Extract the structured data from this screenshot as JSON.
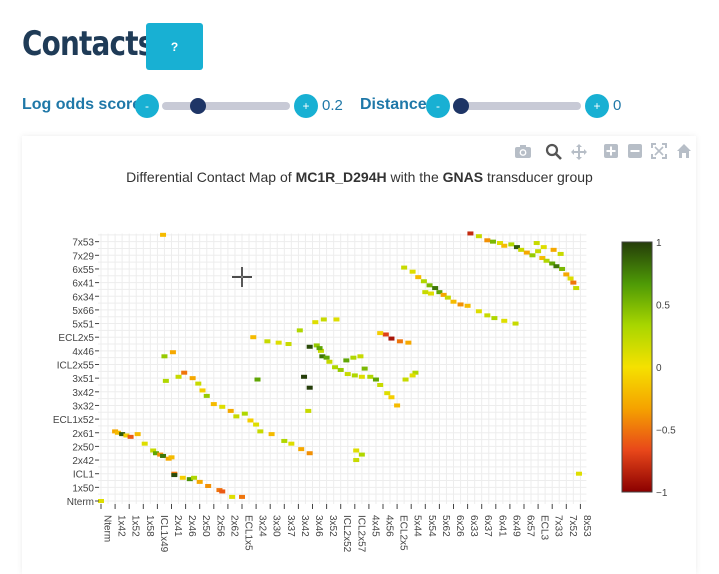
{
  "page": {
    "title": "Contacts",
    "help_label": "?"
  },
  "controls": {
    "log_odds": {
      "label": "Log odds score",
      "minus": "-",
      "plus": "+",
      "value": "0.2",
      "fraction": 0.25
    },
    "distance": {
      "label": "Distance",
      "minus": "-",
      "plus": "+",
      "value": "0",
      "fraction": 0.0
    }
  },
  "modebar": {
    "icons": [
      "camera-icon",
      "zoom-icon",
      "pan-icon",
      "zoom-in-icon",
      "zoom-out-icon",
      "autoscale-icon",
      "home-icon"
    ]
  },
  "chart_data": {
    "type": "heatmap",
    "title_parts": [
      "Differential Contact Map of ",
      "MC1R_D294H",
      " with the ",
      "GNAS",
      " transducer group"
    ],
    "x_categories": [
      "Nterm",
      "1x42",
      "1x52",
      "1x58",
      "ICL1x49",
      "2x41",
      "2x46",
      "2x50",
      "2x56",
      "2x62",
      "ECL1x5",
      "3x24",
      "3x30",
      "3x37",
      "3x42",
      "3x46",
      "3x52",
      "ICL2x52",
      "ICL2x57",
      "4x45",
      "4x56",
      "ECL2x5",
      "5x44",
      "5x54",
      "5x62",
      "6x26",
      "6x33",
      "6x37",
      "6x41",
      "6x49",
      "6x57",
      "ECL3",
      "7x33",
      "7x52",
      "8x53"
    ],
    "y_categories": [
      "Nterm",
      "1x50",
      "ICL1",
      "2x42",
      "2x50",
      "2x61",
      "ECL1x52",
      "3x32",
      "3x42",
      "3x51",
      "ICL2x55",
      "4x46",
      "ECL2x5",
      "5x51",
      "5x66",
      "6x34",
      "6x41",
      "6x55",
      "7x29",
      "7x53"
    ],
    "colorbar": {
      "min": -1,
      "max": 1,
      "ticks": [
        1,
        0.5,
        0,
        -0.5,
        -1
      ],
      "tick_labels": [
        "1",
        "0.5",
        "0",
        "−0.5",
        "−1"
      ]
    },
    "colorscale": [
      "#8b0000",
      "#e8471a",
      "#f5a200",
      "#f5e100",
      "#a8d600",
      "#4e9a06",
      "#253d0a"
    ],
    "grid": true,
    "cells": [
      {
        "x": 0,
        "y": 0,
        "v": 0.1
      },
      {
        "x": 4.4,
        "y": 19.5,
        "v": -0.2
      },
      {
        "x": 1,
        "y": 5.1,
        "v": -0.3
      },
      {
        "x": 1.2,
        "y": 5,
        "v": -0.2
      },
      {
        "x": 1.5,
        "y": 4.9,
        "v": 0.9
      },
      {
        "x": 1.8,
        "y": 4.8,
        "v": -0.1
      },
      {
        "x": 2.1,
        "y": 4.7,
        "v": -0.6
      },
      {
        "x": 2.6,
        "y": 4.9,
        "v": -0.2
      },
      {
        "x": 3.1,
        "y": 4.2,
        "v": 0.1
      },
      {
        "x": 3.7,
        "y": 3.7,
        "v": 0.2
      },
      {
        "x": 3.9,
        "y": 3.5,
        "v": 0.6
      },
      {
        "x": 4.2,
        "y": 3.4,
        "v": -0.4
      },
      {
        "x": 4.4,
        "y": 3.3,
        "v": 0.8
      },
      {
        "x": 4.8,
        "y": 3.1,
        "v": -0.3
      },
      {
        "x": 5,
        "y": 3.2,
        "v": -0.2
      },
      {
        "x": 5.2,
        "y": 2,
        "v": -0.5
      },
      {
        "x": 5.2,
        "y": 1.9,
        "v": 0.95
      },
      {
        "x": 5.8,
        "y": 1.7,
        "v": -0.1
      },
      {
        "x": 6.3,
        "y": 1.6,
        "v": 0.7
      },
      {
        "x": 6.6,
        "y": 1.7,
        "v": 0.3
      },
      {
        "x": 7,
        "y": 1.4,
        "v": -0.3
      },
      {
        "x": 7.6,
        "y": 1.1,
        "v": -0.4
      },
      {
        "x": 8.4,
        "y": 0.8,
        "v": -0.5
      },
      {
        "x": 8.6,
        "y": 0.7,
        "v": -0.6
      },
      {
        "x": 9.3,
        "y": 0.3,
        "v": 0.1
      },
      {
        "x": 10,
        "y": 0.3,
        "v": -0.5
      },
      {
        "x": 5.5,
        "y": 9.1,
        "v": 0.2
      },
      {
        "x": 5.9,
        "y": 9.4,
        "v": -0.5
      },
      {
        "x": 6.5,
        "y": 9.0,
        "v": -0.3
      },
      {
        "x": 6.9,
        "y": 8.6,
        "v": 0.2
      },
      {
        "x": 7.2,
        "y": 8.1,
        "v": -0.1
      },
      {
        "x": 7.5,
        "y": 7.7,
        "v": 0.4
      },
      {
        "x": 8,
        "y": 7.1,
        "v": -0.2
      },
      {
        "x": 8.6,
        "y": 6.9,
        "v": 0.1
      },
      {
        "x": 9.2,
        "y": 6.6,
        "v": -0.3
      },
      {
        "x": 9.6,
        "y": 6.2,
        "v": 0.2
      },
      {
        "x": 10.2,
        "y": 6.4,
        "v": 0.3
      },
      {
        "x": 10.6,
        "y": 5.9,
        "v": -0.1
      },
      {
        "x": 11,
        "y": 5.6,
        "v": 0.1
      },
      {
        "x": 11.3,
        "y": 5.1,
        "v": 0.2
      },
      {
        "x": 12.1,
        "y": 4.9,
        "v": -0.2
      },
      {
        "x": 13,
        "y": 4.4,
        "v": 0.3
      },
      {
        "x": 13.5,
        "y": 4.2,
        "v": 0.1
      },
      {
        "x": 14.2,
        "y": 3.8,
        "v": -0.3
      },
      {
        "x": 14.8,
        "y": 3.5,
        "v": -0.4
      },
      {
        "x": 4.5,
        "y": 10.6,
        "v": 0.4
      },
      {
        "x": 5.1,
        "y": 10.9,
        "v": -0.3
      },
      {
        "x": 4.6,
        "y": 8.8,
        "v": 0.3
      },
      {
        "x": 10.8,
        "y": 12,
        "v": -0.2
      },
      {
        "x": 11.8,
        "y": 11.7,
        "v": 0.2
      },
      {
        "x": 12.6,
        "y": 11.6,
        "v": 0.1
      },
      {
        "x": 13.3,
        "y": 11.5,
        "v": 0.2
      },
      {
        "x": 14.1,
        "y": 12.5,
        "v": 0.3
      },
      {
        "x": 14.8,
        "y": 11.3,
        "v": 0.95
      },
      {
        "x": 15.3,
        "y": 11.4,
        "v": 0.4
      },
      {
        "x": 15.6,
        "y": 11.0,
        "v": 0.2
      },
      {
        "x": 15.5,
        "y": 11.2,
        "v": 0.6
      },
      {
        "x": 15.7,
        "y": 10.6,
        "v": 0.8
      },
      {
        "x": 16,
        "y": 10.5,
        "v": 0.6
      },
      {
        "x": 16.2,
        "y": 10.2,
        "v": 0.2
      },
      {
        "x": 16.6,
        "y": 9.8,
        "v": 0.3
      },
      {
        "x": 17,
        "y": 9.6,
        "v": 0.4
      },
      {
        "x": 17.5,
        "y": 9.3,
        "v": 0.2
      },
      {
        "x": 18,
        "y": 9.2,
        "v": 0.3
      },
      {
        "x": 18.5,
        "y": 9.1,
        "v": 0.1
      },
      {
        "x": 15.2,
        "y": 13.1,
        "v": 0.1
      },
      {
        "x": 15.8,
        "y": 13.3,
        "v": 0.2
      },
      {
        "x": 16.7,
        "y": 13.3,
        "v": 0.1
      },
      {
        "x": 17.4,
        "y": 10.3,
        "v": 0.6
      },
      {
        "x": 17.9,
        "y": 10.5,
        "v": 0.3
      },
      {
        "x": 18.4,
        "y": 10.6,
        "v": 0.2
      },
      {
        "x": 18.7,
        "y": 9.7,
        "v": 0.5
      },
      {
        "x": 19.1,
        "y": 9.1,
        "v": 0.3
      },
      {
        "x": 19.5,
        "y": 8.9,
        "v": 0.6
      },
      {
        "x": 19.8,
        "y": 8.5,
        "v": 0.2
      },
      {
        "x": 20.3,
        "y": 7.9,
        "v": 0.1
      },
      {
        "x": 20.6,
        "y": 7.6,
        "v": -0.1
      },
      {
        "x": 21.0,
        "y": 7.0,
        "v": -0.2
      },
      {
        "x": 14.4,
        "y": 9.1,
        "v": 1.0
      },
      {
        "x": 14.8,
        "y": 8.3,
        "v": 1.0
      },
      {
        "x": 11.1,
        "y": 8.9,
        "v": 0.6
      },
      {
        "x": 14.7,
        "y": 6.6,
        "v": 0.2
      },
      {
        "x": 18.1,
        "y": 3.0,
        "v": 0.2
      },
      {
        "x": 18.5,
        "y": 3.4,
        "v": 0.3
      },
      {
        "x": 18.1,
        "y": 3.7,
        "v": 0.1
      },
      {
        "x": 20.2,
        "y": 12.2,
        "v": -0.7
      },
      {
        "x": 20.6,
        "y": 11.9,
        "v": -0.9
      },
      {
        "x": 21.2,
        "y": 11.7,
        "v": -0.5
      },
      {
        "x": 21.8,
        "y": 11.6,
        "v": -0.3
      },
      {
        "x": 19.8,
        "y": 12.3,
        "v": -0.1
      },
      {
        "x": 21.6,
        "y": 8.9,
        "v": 0.2
      },
      {
        "x": 22.3,
        "y": 9.4,
        "v": 0.3
      },
      {
        "x": 22.1,
        "y": 9.2,
        "v": 0.1
      },
      {
        "x": 21.5,
        "y": 17.1,
        "v": 0.2
      },
      {
        "x": 22.1,
        "y": 16.8,
        "v": 0.1
      },
      {
        "x": 22.5,
        "y": 16.4,
        "v": -0.2
      },
      {
        "x": 22.9,
        "y": 16.1,
        "v": 0.3
      },
      {
        "x": 23.3,
        "y": 15.8,
        "v": 0.5
      },
      {
        "x": 23.7,
        "y": 15.6,
        "v": 0.8
      },
      {
        "x": 24.0,
        "y": 15.3,
        "v": 0.6
      },
      {
        "x": 24.3,
        "y": 15.1,
        "v": -0.3
      },
      {
        "x": 24.6,
        "y": 14.9,
        "v": 0.2
      },
      {
        "x": 25.0,
        "y": 14.6,
        "v": -0.2
      },
      {
        "x": 25.5,
        "y": 14.4,
        "v": -0.4
      },
      {
        "x": 26.0,
        "y": 14.3,
        "v": -0.2
      },
      {
        "x": 23.0,
        "y": 15.3,
        "v": 0.2
      },
      {
        "x": 23.4,
        "y": 15.2,
        "v": 0.1
      },
      {
        "x": 26.8,
        "y": 13.9,
        "v": 0.1
      },
      {
        "x": 27.4,
        "y": 13.6,
        "v": 0.2
      },
      {
        "x": 27.9,
        "y": 13.4,
        "v": 0.3
      },
      {
        "x": 28.6,
        "y": 13.2,
        "v": 0.1
      },
      {
        "x": 29.4,
        "y": 13.0,
        "v": 0.2
      },
      {
        "x": 26.2,
        "y": 19.6,
        "v": -0.8
      },
      {
        "x": 26.8,
        "y": 19.4,
        "v": 0.2
      },
      {
        "x": 27.4,
        "y": 19.1,
        "v": -0.4
      },
      {
        "x": 27.8,
        "y": 19.0,
        "v": 0.5
      },
      {
        "x": 28.3,
        "y": 18.9,
        "v": 0.1
      },
      {
        "x": 28.6,
        "y": 18.7,
        "v": -0.2
      },
      {
        "x": 29.1,
        "y": 18.8,
        "v": 0.3
      },
      {
        "x": 29.5,
        "y": 18.6,
        "v": 0.9
      },
      {
        "x": 29.8,
        "y": 18.4,
        "v": 0.2
      },
      {
        "x": 30.2,
        "y": 18.2,
        "v": -0.3
      },
      {
        "x": 30.6,
        "y": 18.0,
        "v": 0.4
      },
      {
        "x": 31.0,
        "y": 18.3,
        "v": 0.2
      },
      {
        "x": 31.3,
        "y": 17.8,
        "v": -0.2
      },
      {
        "x": 31.6,
        "y": 17.6,
        "v": 0.3
      },
      {
        "x": 32.0,
        "y": 17.4,
        "v": 0.6
      },
      {
        "x": 32.3,
        "y": 17.2,
        "v": 0.8
      },
      {
        "x": 32.7,
        "y": 17.0,
        "v": 0.5
      },
      {
        "x": 33.0,
        "y": 16.6,
        "v": -0.3
      },
      {
        "x": 33.3,
        "y": 16.3,
        "v": 0.1
      },
      {
        "x": 33.5,
        "y": 16.0,
        "v": -0.5
      },
      {
        "x": 33.7,
        "y": 15.6,
        "v": 0.2
      },
      {
        "x": 33.9,
        "y": 2.0,
        "v": 0.1
      },
      {
        "x": 30.9,
        "y": 18.9,
        "v": 0.2
      },
      {
        "x": 31.4,
        "y": 18.6,
        "v": 0.1
      },
      {
        "x": 32.1,
        "y": 18.4,
        "v": -0.3
      },
      {
        "x": 32.6,
        "y": 18.1,
        "v": 0.2
      }
    ]
  }
}
